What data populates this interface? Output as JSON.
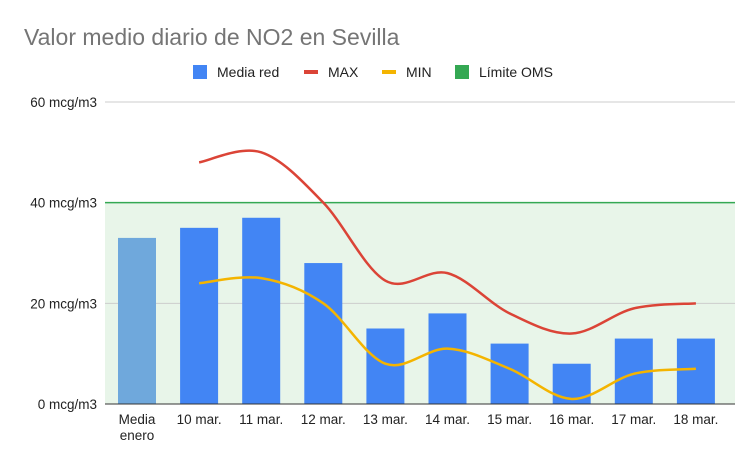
{
  "chart_data": {
    "type": "bar",
    "title": "Valor medio diario de NO2 en Sevilla",
    "categories": [
      [
        "Media",
        "enero"
      ],
      [
        "10 mar."
      ],
      [
        "11 mar."
      ],
      [
        "12 mar."
      ],
      [
        "13 mar."
      ],
      [
        "14 mar."
      ],
      [
        "15 mar."
      ],
      [
        "16 mar."
      ],
      [
        "17 mar."
      ],
      [
        "18 mar."
      ]
    ],
    "ylim": [
      0,
      60
    ],
    "yticks": [
      0,
      20,
      40,
      60
    ],
    "ytick_labels": [
      "0 mcg/m3",
      "20 mcg/m3",
      "40 mcg/m3",
      "60 mcg/m3"
    ],
    "legend_position": "top",
    "series": [
      {
        "name": "Media red",
        "type": "bar",
        "color": "#4285f4",
        "first_bar_color": "#6fa8dc",
        "values": [
          33,
          35,
          37,
          28,
          15,
          18,
          12,
          8,
          13,
          13
        ]
      },
      {
        "name": "MAX",
        "type": "line",
        "color": "#db4437",
        "values": [
          null,
          48,
          50,
          40,
          24.5,
          26,
          18,
          14,
          19,
          20
        ]
      },
      {
        "name": "MIN",
        "type": "line",
        "color": "#f4b400",
        "values": [
          null,
          24,
          25,
          20,
          8,
          11,
          7,
          1,
          6,
          7
        ]
      },
      {
        "name": "Límite OMS",
        "type": "area",
        "color": "#34a853",
        "band_color": "#e8f5e9",
        "value": 40
      }
    ]
  }
}
